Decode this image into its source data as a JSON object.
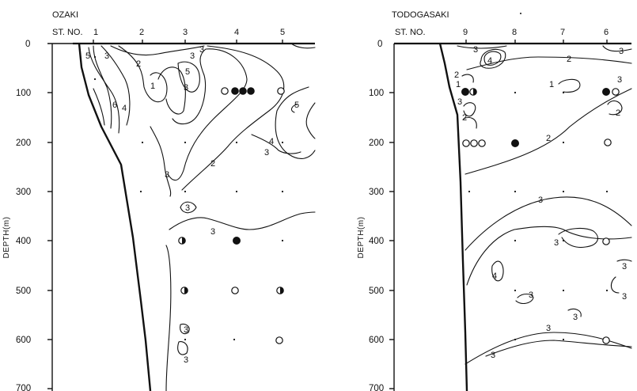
{
  "panels": [
    {
      "id": "ozaki",
      "title": "OZAKI",
      "station_prefix": "ST. NO.",
      "stations": [
        "1",
        "2",
        "3",
        "4",
        "5"
      ],
      "y_label": "DEPTH(m)",
      "y_ticks": [
        "0",
        "100",
        "200",
        "300",
        "400",
        "500",
        "600",
        "700"
      ],
      "contour_labels": [
        "5",
        "3",
        "2",
        "3",
        "5",
        "3",
        "1",
        "6",
        "4",
        "3",
        "5",
        "4",
        "3",
        "2",
        "3",
        "3",
        "3",
        "3",
        "3"
      ],
      "markers": [
        {
          "station": "4",
          "depth": 100,
          "symbol": "open"
        },
        {
          "station": "4",
          "depth": 100,
          "symbol": "filled"
        },
        {
          "station": "4",
          "depth": 100,
          "symbol": "filled"
        },
        {
          "station": "4",
          "depth": 100,
          "symbol": "filled"
        },
        {
          "station": "5",
          "depth": 100,
          "symbol": "open"
        },
        {
          "station": "3",
          "depth": 400,
          "symbol": "half"
        },
        {
          "station": "4",
          "depth": 400,
          "symbol": "filled"
        },
        {
          "station": "3",
          "depth": 500,
          "symbol": "half"
        },
        {
          "station": "4",
          "depth": 500,
          "symbol": "open"
        },
        {
          "station": "5",
          "depth": 500,
          "symbol": "half"
        },
        {
          "station": "5",
          "depth": 600,
          "symbol": "open"
        }
      ]
    },
    {
      "id": "todogasaki",
      "title": "TODOGASAKI",
      "station_prefix": "ST. NO.",
      "stations": [
        "9",
        "8",
        "7",
        "6"
      ],
      "y_label": "DEPTH(m)",
      "y_ticks": [
        "0",
        "100",
        "200",
        "300",
        "400",
        "500",
        "600",
        "700"
      ],
      "contour_labels": [
        "3",
        "4",
        "2",
        "3",
        "2",
        "1",
        "1",
        "3",
        "3",
        "2",
        "2",
        "2",
        "3",
        "3",
        "3",
        "4",
        "3",
        "3",
        "3",
        "3",
        "3"
      ],
      "markers": [
        {
          "station": "9",
          "depth": 95,
          "symbol": "filled"
        },
        {
          "station": "9",
          "depth": 95,
          "symbol": "half"
        },
        {
          "station": "6",
          "depth": 95,
          "symbol": "filled"
        },
        {
          "station": "6",
          "depth": 95,
          "symbol": "open"
        },
        {
          "station": "9",
          "depth": 200,
          "symbol": "open"
        },
        {
          "station": "9",
          "depth": 200,
          "symbol": "open"
        },
        {
          "station": "9",
          "depth": 200,
          "symbol": "open"
        },
        {
          "station": "8",
          "depth": 200,
          "symbol": "filled"
        },
        {
          "station": "6",
          "depth": 200,
          "symbol": "open"
        },
        {
          "station": "6",
          "depth": 400,
          "symbol": "open"
        },
        {
          "station": "6",
          "depth": 600,
          "symbol": "open"
        }
      ]
    }
  ]
}
